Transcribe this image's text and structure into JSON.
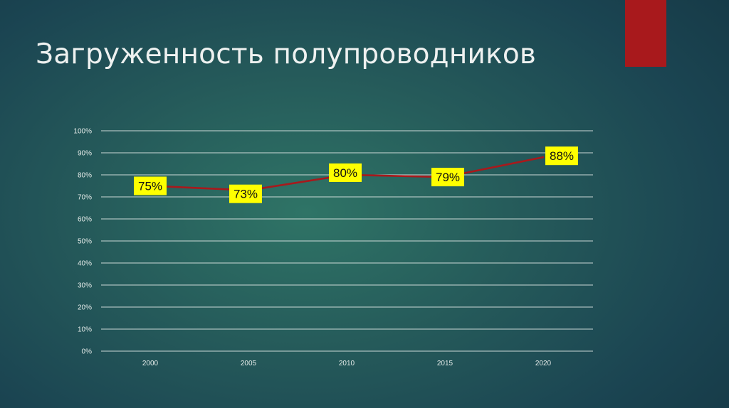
{
  "slide": {
    "title": "Загруженность полупроводников",
    "accent_color": "#a8191c"
  },
  "chart_data": {
    "type": "line",
    "x": [
      "2000",
      "2005",
      "2010",
      "2015",
      "2020"
    ],
    "series": [
      {
        "values": [
          75,
          73,
          80,
          79,
          88
        ],
        "data_labels": [
          "75%",
          "73%",
          "80%",
          "79%",
          "88%"
        ],
        "color": "#a8191c"
      }
    ],
    "ylim": [
      0,
      100
    ],
    "y_ticks": [
      0,
      10,
      20,
      30,
      40,
      50,
      60,
      70,
      80,
      90,
      100
    ],
    "y_tick_labels": [
      "0%",
      "10%",
      "20%",
      "30%",
      "40%",
      "50%",
      "60%",
      "70%",
      "80%",
      "90%",
      "100%"
    ],
    "grid": true,
    "label_background": "#ffff00"
  }
}
